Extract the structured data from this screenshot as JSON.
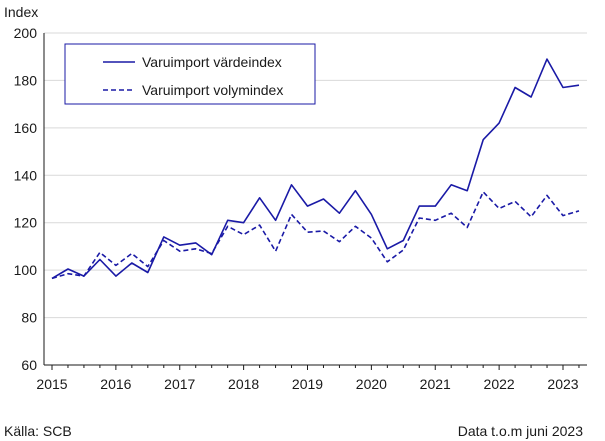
{
  "chart_data": {
    "type": "line",
    "ylabel": "Index",
    "ylim": [
      60,
      200
    ],
    "yticks": [
      60,
      80,
      100,
      120,
      140,
      160,
      180,
      200
    ],
    "xlim": [
      2015,
      2023.42
    ],
    "xticks": [
      2015,
      2016,
      2017,
      2018,
      2019,
      2020,
      2021,
      2022,
      2023
    ],
    "grid": "horizontal",
    "legend_position": "top-left",
    "color": "#1a1aa6",
    "series": [
      {
        "name": "Varuimport värdeindex",
        "style": "solid",
        "points": [
          [
            2015.0,
            96.5
          ],
          [
            2015.25,
            100.5
          ],
          [
            2015.5,
            97.5
          ],
          [
            2015.75,
            104.5
          ],
          [
            2016.0,
            97.5
          ],
          [
            2016.25,
            103.0
          ],
          [
            2016.5,
            99.0
          ],
          [
            2016.75,
            114.0
          ],
          [
            2017.0,
            110.5
          ],
          [
            2017.25,
            111.5
          ],
          [
            2017.5,
            106.5
          ],
          [
            2017.75,
            121.0
          ],
          [
            2018.0,
            120.0
          ],
          [
            2018.25,
            130.5
          ],
          [
            2018.5,
            121.0
          ],
          [
            2018.75,
            136.0
          ],
          [
            2019.0,
            127.0
          ],
          [
            2019.25,
            130.0
          ],
          [
            2019.5,
            124.0
          ],
          [
            2019.75,
            133.5
          ],
          [
            2020.0,
            123.5
          ],
          [
            2020.25,
            109.0
          ],
          [
            2020.5,
            112.5
          ],
          [
            2020.75,
            127.0
          ],
          [
            2021.0,
            127.0
          ],
          [
            2021.25,
            136.0
          ],
          [
            2021.5,
            133.5
          ],
          [
            2021.75,
            155.0
          ],
          [
            2022.0,
            162.0
          ],
          [
            2022.25,
            177.0
          ],
          [
            2022.5,
            173.0
          ],
          [
            2022.75,
            189.0
          ],
          [
            2023.0,
            177.0
          ],
          [
            2023.25,
            178.0
          ]
        ]
      },
      {
        "name": "Varuimport volymindex",
        "style": "dashed",
        "points": [
          [
            2015.0,
            96.5
          ],
          [
            2015.25,
            98.5
          ],
          [
            2015.5,
            97.5
          ],
          [
            2015.75,
            107.5
          ],
          [
            2016.0,
            102.0
          ],
          [
            2016.25,
            107.0
          ],
          [
            2016.5,
            101.5
          ],
          [
            2016.75,
            112.5
          ],
          [
            2017.0,
            108.0
          ],
          [
            2017.25,
            109.0
          ],
          [
            2017.5,
            107.0
          ],
          [
            2017.75,
            118.5
          ],
          [
            2018.0,
            115.0
          ],
          [
            2018.25,
            119.0
          ],
          [
            2018.5,
            108.0
          ],
          [
            2018.75,
            123.5
          ],
          [
            2019.0,
            116.0
          ],
          [
            2019.25,
            116.5
          ],
          [
            2019.5,
            112.0
          ],
          [
            2019.75,
            118.5
          ],
          [
            2020.0,
            113.5
          ],
          [
            2020.25,
            103.5
          ],
          [
            2020.5,
            108.5
          ],
          [
            2020.75,
            122.0
          ],
          [
            2021.0,
            121.0
          ],
          [
            2021.25,
            124.0
          ],
          [
            2021.5,
            118.0
          ],
          [
            2021.75,
            133.0
          ],
          [
            2022.0,
            126.0
          ],
          [
            2022.25,
            129.0
          ],
          [
            2022.5,
            122.5
          ],
          [
            2022.75,
            131.5
          ],
          [
            2023.0,
            123.0
          ],
          [
            2023.25,
            125.0
          ]
        ]
      }
    ]
  },
  "footer": {
    "source": "Källa: SCB",
    "note": "Data t.o.m juni 2023"
  }
}
